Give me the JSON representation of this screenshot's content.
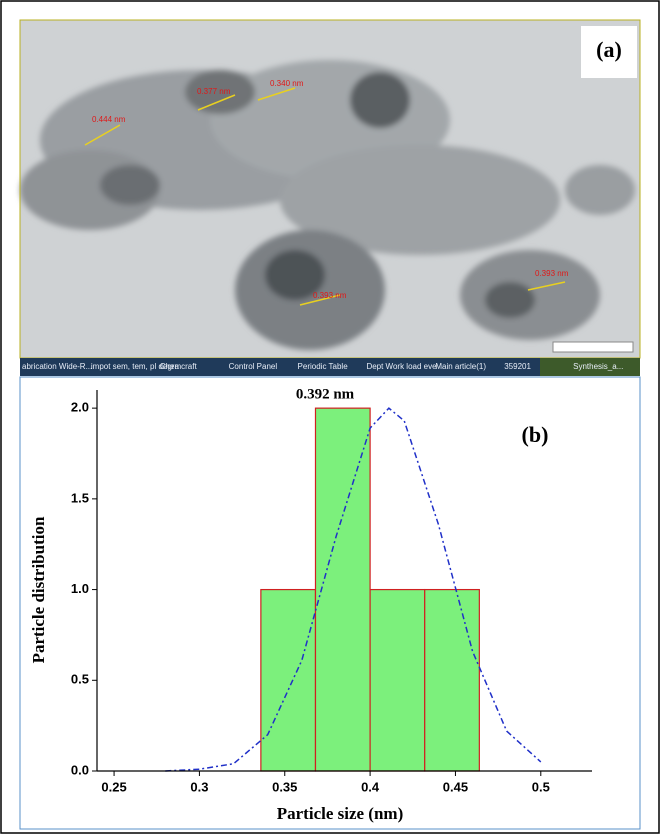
{
  "image": {
    "panel_label": "(a)",
    "measurements": [
      "0.444 nm",
      "0.377 nm",
      "0.340 nm",
      "0.393 nm",
      "0.393 nm"
    ]
  },
  "taskbar": [
    "abrication Wide-R...",
    "impot sem, tem, pl degra",
    "Chemcraft",
    "Control Panel",
    "Periodic Table",
    "Dept Work load eve",
    "Main article(1)",
    "359201",
    "Synthesis_a..."
  ],
  "chart_data": {
    "type": "histogram",
    "panel_label": "(b)",
    "annotation": "0.392 nm",
    "x_label": "Particle size (nm)",
    "y_label": "Particle distribution",
    "bins": [
      0.336,
      0.368,
      0.4,
      0.432,
      0.464
    ],
    "values": [
      1,
      2,
      1,
      1
    ],
    "color": "#7cf07c",
    "edge_color": "#d02020",
    "fit": {
      "type": "line",
      "x": [
        0.28,
        0.3,
        0.32,
        0.34,
        0.36,
        0.38,
        0.4,
        0.411,
        0.42,
        0.44,
        0.46,
        0.48,
        0.5
      ],
      "values": [
        0.0,
        0.01,
        0.04,
        0.2,
        0.61,
        1.29,
        1.89,
        2.0,
        1.93,
        1.36,
        0.66,
        0.22,
        0.05
      ],
      "color": "#2030c8"
    },
    "xlim": [
      0.24,
      0.53
    ],
    "ylim": [
      0,
      2.1
    ],
    "xticks": [
      0.25,
      0.3,
      0.35,
      0.4,
      0.45,
      0.5
    ],
    "yticks": [
      {
        "value": 0,
        "label": "0.0"
      },
      0.5,
      {
        "value": 1,
        "label": "1.0"
      },
      1.5,
      {
        "value": 2,
        "label": "2.0"
      }
    ]
  }
}
